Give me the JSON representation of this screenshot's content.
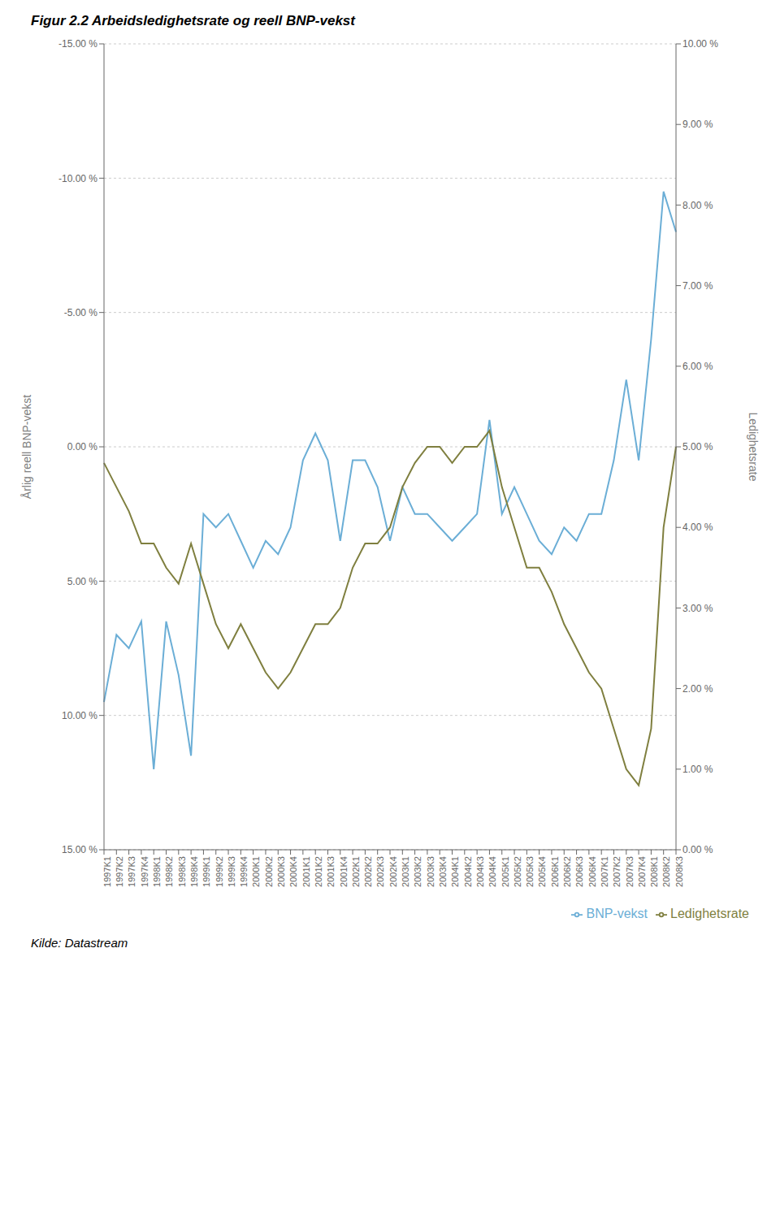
{
  "chart_data": {
    "type": "line",
    "title": "Figur 2.2 Arbeidsledighetsrate og reell BNP-vekst",
    "annotations": [
      "Kilde: Datastream"
    ],
    "ylabel": "Årlig reell BNP-vekst",
    "y2label": "Ledighetsrate",
    "categories": [
      "1997K1",
      "1997K2",
      "1997K3",
      "1997K4",
      "1998K1",
      "1998K2",
      "1998K3",
      "1998K4",
      "1999K1",
      "1999K2",
      "1999K3",
      "1999K4",
      "2000K1",
      "2000K2",
      "2000K3",
      "2000K4",
      "2001K1",
      "2001K2",
      "2001K3",
      "2001K4",
      "2002K1",
      "2002K2",
      "2002K3",
      "2002K4",
      "2003K1",
      "2003K2",
      "2003K3",
      "2003K4",
      "2004K1",
      "2004K2",
      "2004K3",
      "2004K4",
      "2005K1",
      "2005K2",
      "2005K3",
      "2005K4",
      "2006K1",
      "2006K2",
      "2006K3",
      "2006K4",
      "2007K1",
      "2007K2",
      "2007K3",
      "2007K4",
      "2008K1",
      "2008K2",
      "2008K3"
    ],
    "series": [
      {
        "name": "BNP-vekst",
        "color": "#6baed6",
        "values": [
          9.5,
          7.0,
          7.5,
          6.5,
          12.0,
          6.5,
          8.5,
          11.5,
          2.5,
          3.0,
          2.5,
          3.5,
          4.5,
          3.5,
          4.0,
          3.0,
          0.5,
          -0.5,
          0.5,
          3.5,
          0.5,
          0.5,
          1.5,
          3.5,
          1.5,
          2.5,
          2.5,
          3.0,
          3.5,
          3.0,
          2.5,
          -1.0,
          2.5,
          1.5,
          2.5,
          3.5,
          4.0,
          3.0,
          3.5,
          2.5,
          2.5,
          0.5,
          -2.5,
          0.5,
          -4.0,
          -9.5,
          -8.0
        ]
      },
      {
        "name": "Ledighetsrate",
        "color": "#7f7f3f",
        "axis": "y2",
        "values": [
          4.8,
          4.5,
          4.2,
          3.8,
          3.8,
          3.5,
          3.3,
          3.8,
          3.3,
          2.8,
          2.5,
          2.8,
          2.5,
          2.2,
          2.0,
          2.2,
          2.5,
          2.8,
          2.8,
          3.0,
          3.5,
          3.8,
          3.8,
          4.0,
          4.5,
          4.8,
          5.0,
          5.0,
          4.8,
          5.0,
          5.0,
          5.2,
          4.5,
          4.0,
          3.5,
          3.5,
          3.2,
          2.8,
          2.5,
          2.2,
          2.0,
          1.5,
          1.0,
          0.8,
          1.5,
          4.0,
          5.0
        ]
      }
    ],
    "ylim": [
      15,
      -15
    ],
    "yticks": [
      {
        "value": -15,
        "label": "-15.00 %"
      },
      {
        "value": -10,
        "label": "-10.00 %"
      },
      {
        "value": -5,
        "label": "-5.00 %"
      },
      {
        "value": 0,
        "label": "0.00 %"
      },
      {
        "value": 5,
        "label": "5.00 %"
      },
      {
        "value": 10,
        "label": "10.00 %"
      },
      {
        "value": 15,
        "label": "15.00 %"
      }
    ],
    "y2lim": [
      0,
      10
    ],
    "y2ticks": [
      {
        "value": 0,
        "label": "0.00 %"
      },
      {
        "value": 1,
        "label": "1.00 %"
      },
      {
        "value": 2,
        "label": "2.00 %"
      },
      {
        "value": 3,
        "label": "3.00 %"
      },
      {
        "value": 4,
        "label": "4.00 %"
      },
      {
        "value": 5,
        "label": "5.00 %"
      },
      {
        "value": 6,
        "label": "6.00 %"
      },
      {
        "value": 7,
        "label": "7.00 %"
      },
      {
        "value": 8,
        "label": "8.00 %"
      },
      {
        "value": 9,
        "label": "9.00 %"
      },
      {
        "value": 10,
        "label": "10.00 %"
      }
    ],
    "grid": true,
    "legend": "lower right"
  }
}
